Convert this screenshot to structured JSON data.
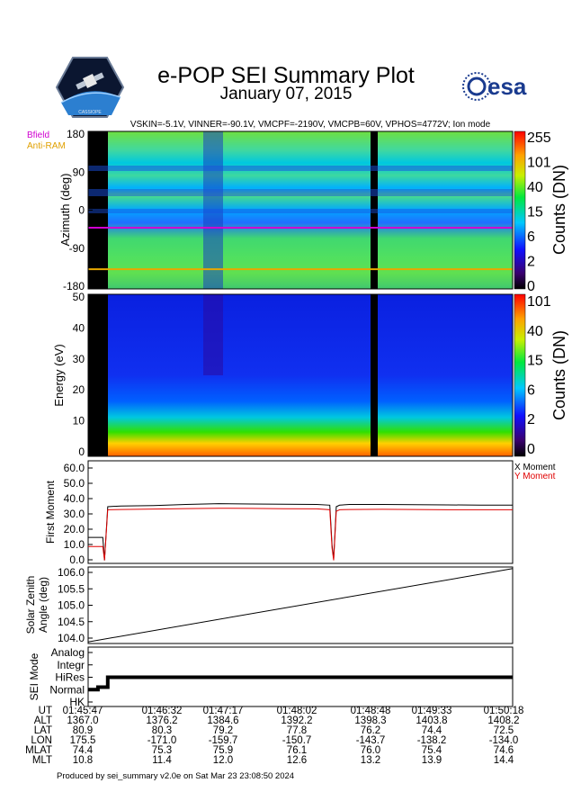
{
  "header": {
    "title": "e-POP SEI Summary Plot",
    "date": "January 07, 2015",
    "voltages": "VSKIN=-5.1V, VINNER=-90.1V, VMCPF=-2190V, VMCPB=60V, VPHOS=4772V; Ion mode",
    "logo_left_text": "CASSIOPE",
    "logo_right_text": "esa"
  },
  "legend": {
    "bfield": "Bfield",
    "antiram": "Anti-RAM"
  },
  "colors": {
    "bfield": "#d000d0",
    "antiram": "#e8a800",
    "x_moment": "#000000",
    "y_moment": "#e00000"
  },
  "chart_data": [
    {
      "type": "heatmap",
      "name": "Azimuth spectrogram",
      "ylabel": "Azimuth (deg)",
      "yticks": [
        "180",
        "90",
        "0",
        "-90",
        "-180"
      ],
      "ylim": [
        -180,
        180
      ],
      "bfield_azimuth": -40,
      "antiram_azimuth": -135,
      "colorbar_label": "Counts (DN)",
      "colorbar_ticks": [
        "255",
        "101",
        "40",
        "15",
        "6",
        "2",
        "0"
      ]
    },
    {
      "type": "heatmap",
      "name": "Energy spectrogram",
      "ylabel": "Energy (eV)",
      "yticks": [
        "50",
        "40",
        "30",
        "20",
        "10",
        "0"
      ],
      "ylim": [
        0,
        50
      ],
      "colorbar_label": "Counts (DN)",
      "colorbar_ticks": [
        "101",
        "40",
        "15",
        "6",
        "2",
        "0"
      ]
    },
    {
      "type": "line",
      "name": "First Moment",
      "ylabel": "First Moment",
      "yticks": [
        "60.0",
        "50.0",
        "40.0",
        "30.0",
        "20.0",
        "10.0",
        "0.0"
      ],
      "ylim": [
        -2,
        65
      ],
      "x_minutes": [
        0,
        0.1,
        0.45,
        0.5,
        0.6,
        1,
        2,
        3,
        4,
        5,
        6,
        7,
        7.4,
        7.47,
        7.52,
        7.6,
        7.7,
        8,
        9,
        10,
        11,
        12,
        12.9,
        13.0
      ],
      "series": [
        {
          "name": "X Moment",
          "values": [
            15,
            15,
            15,
            0,
            35,
            35.5,
            35.8,
            36.5,
            37,
            36.8,
            36.6,
            36.5,
            36,
            10,
            1,
            35,
            36,
            36.5,
            36.5,
            36.3,
            36.2,
            36.1,
            36,
            36
          ]
        },
        {
          "name": "Y Moment",
          "values": [
            9,
            9,
            9,
            0,
            33,
            33.2,
            33.5,
            33.8,
            34,
            33.9,
            33.7,
            33.6,
            33,
            8,
            0,
            32,
            33,
            33.2,
            33.3,
            33.2,
            33,
            33,
            33,
            33
          ]
        }
      ]
    },
    {
      "type": "line",
      "name": "Solar Zenith Angle",
      "ylabel": "Solar Zenith Angle (deg)",
      "yticks": [
        "106.0",
        "105.5",
        "105.0",
        "104.5",
        "104.0"
      ],
      "ylim": [
        103.85,
        106.15
      ],
      "x_minutes": [
        0,
        13.0
      ],
      "series": [
        {
          "name": "SZA",
          "values": [
            103.9,
            106.1
          ]
        }
      ]
    },
    {
      "type": "line",
      "name": "SEI Mode",
      "ylabel": "SEI Mode",
      "yticks": [
        "Analog",
        "Integr",
        "HiRes",
        "Normal",
        "HK"
      ],
      "x_minutes": [
        0,
        0.3,
        0.3,
        0.6,
        0.6,
        13.0
      ],
      "series": [
        {
          "name": "mode",
          "values": [
            1,
            1,
            1.2,
            1.2,
            2,
            2
          ]
        }
      ]
    }
  ],
  "timeline": {
    "labels": [
      "UT",
      "ALT",
      "LAT",
      "LON",
      "MLAT",
      "MLT"
    ],
    "columns": [
      [
        "01:45:47",
        "1367.0",
        "80.9",
        "175.5",
        "74.4",
        "10.8"
      ],
      [
        "01:46:32",
        "1376.2",
        "80.3",
        "-171.0",
        "75.3",
        "11.4"
      ],
      [
        "01:47:17",
        "1384.6",
        "79.2",
        "-159.7",
        "75.9",
        "12.0"
      ],
      [
        "01:48:02",
        "1392.2",
        "77.8",
        "-150.7",
        "76.1",
        "12.6"
      ],
      [
        "01:48:48",
        "1398.3",
        "76.2",
        "-143.7",
        "76.0",
        "13.2"
      ],
      [
        "01:49:33",
        "1403.8",
        "74.4",
        "-138.2",
        "75.4",
        "13.9"
      ],
      [
        "01:50:18",
        "1408.2",
        "72.5",
        "-134.0",
        "74.6",
        "14.4"
      ]
    ]
  },
  "footer": "Produced by sei_summary v2.0e on Sat Mar 23 23:08:50 2024"
}
